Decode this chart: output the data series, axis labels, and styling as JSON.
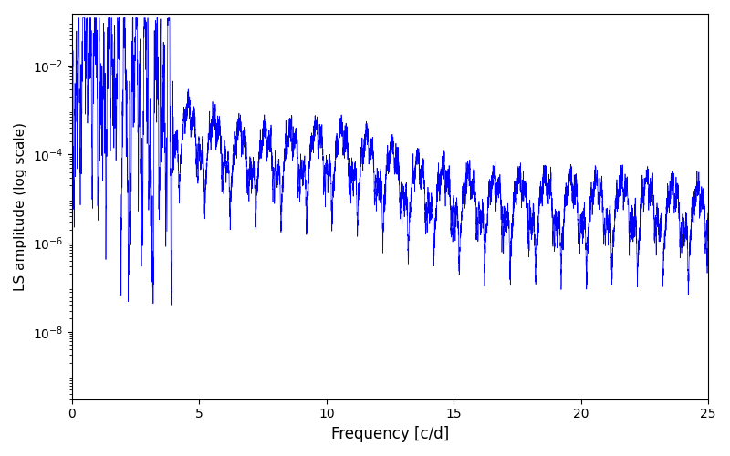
{
  "xlabel": "Frequency [c/d]",
  "ylabel": "LS amplitude (log scale)",
  "xlim": [
    0,
    25
  ],
  "ylim": [
    3e-10,
    0.15
  ],
  "line_color": "#0000ff",
  "line_width": 0.5,
  "figsize": [
    8.0,
    5.0
  ],
  "dpi": 100,
  "seed": 42,
  "n_points": 8000
}
